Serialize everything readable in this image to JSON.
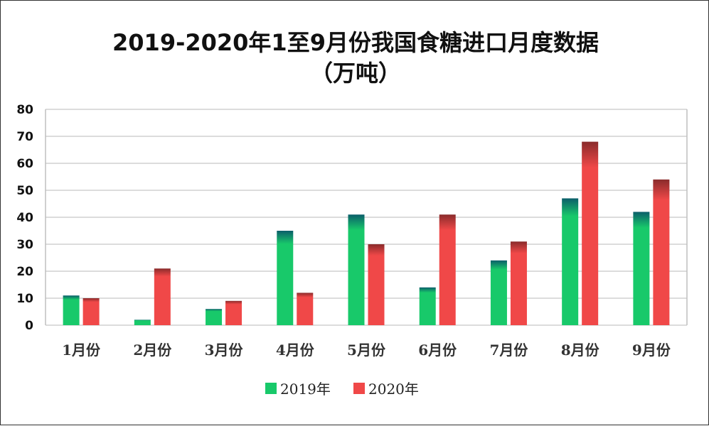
{
  "chart_data": {
    "type": "bar",
    "title_line1": "2019-2020年1至9月份我国食糖进口月度数据",
    "title_line2": "（万吨）",
    "categories": [
      "1月份",
      "2月份",
      "3月份",
      "4月份",
      "5月份",
      "6月份",
      "7月份",
      "8月份",
      "9月份"
    ],
    "series": [
      {
        "name": "2019年",
        "values": [
          11,
          2,
          6,
          35,
          41,
          14,
          24,
          47,
          42
        ],
        "color": "#18c96a",
        "top_color": "#0b5e6a"
      },
      {
        "name": "2020年",
        "values": [
          10,
          21,
          9,
          12,
          30,
          41,
          31,
          68,
          54
        ],
        "color": "#f04848",
        "top_color": "#8a2b2b"
      }
    ],
    "ylim": [
      0,
      80
    ],
    "yticks": [
      "0",
      "10",
      "20",
      "30",
      "40",
      "50",
      "60",
      "70",
      "80"
    ],
    "grid": true,
    "legend_position": "bottom"
  }
}
